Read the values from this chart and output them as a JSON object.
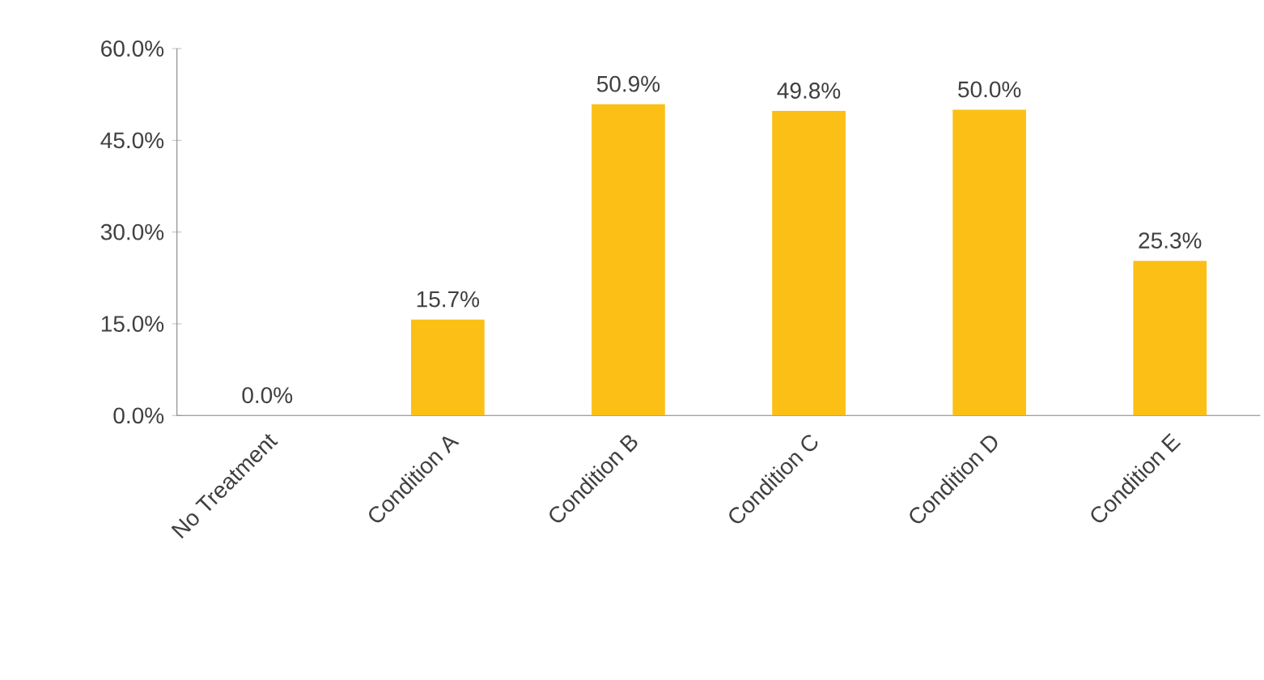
{
  "chart_data": {
    "type": "bar",
    "categories": [
      "No Treatment",
      "Condition A",
      "Condition B",
      "Condition C",
      "Condition D",
      "Condition E"
    ],
    "values": [
      0.0,
      15.7,
      50.9,
      49.8,
      50.0,
      25.3
    ],
    "value_labels": [
      "0.0%",
      "15.7%",
      "50.9%",
      "49.8%",
      "50.0%",
      "25.3%"
    ],
    "color": "#fbbf16",
    "ylim": [
      0,
      60
    ],
    "yticks": [
      {
        "value": 0,
        "label": "0.0%"
      },
      {
        "value": 15,
        "label": "15.0%"
      },
      {
        "value": 30,
        "label": "30.0%"
      },
      {
        "value": 45,
        "label": "45.0%"
      },
      {
        "value": 60,
        "label": "60.0%"
      }
    ],
    "grid": false
  }
}
